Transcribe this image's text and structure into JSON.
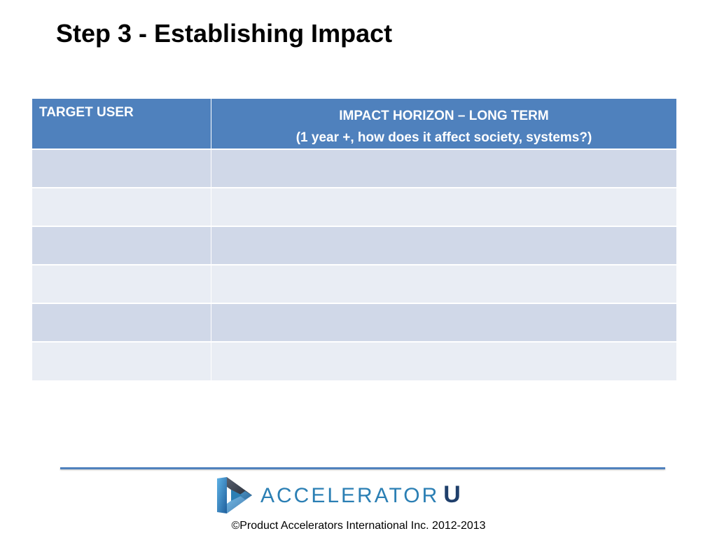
{
  "slide": {
    "title": "Step 3 - Establishing Impact"
  },
  "table": {
    "headers": {
      "target_user": "TARGET USER",
      "impact_line1": "IMPACT HORIZON – LONG TERM",
      "impact_line2": "(1 year +, how does it affect society, systems?)"
    },
    "rows": [
      {
        "target_user": "",
        "impact": ""
      },
      {
        "target_user": "",
        "impact": ""
      },
      {
        "target_user": "",
        "impact": ""
      },
      {
        "target_user": "",
        "impact": ""
      },
      {
        "target_user": "",
        "impact": ""
      },
      {
        "target_user": "",
        "impact": ""
      }
    ],
    "colors": {
      "header": "#4f81bd",
      "row_odd": "#d0d8e8",
      "row_even": "#e9edf4"
    }
  },
  "footer": {
    "logo_text": "ACCELERATOR",
    "logo_suffix": "U",
    "copyright": "©Product Accelerators International Inc. 2012-2013",
    "icon": "accelerator-u-logo-icon",
    "colors": {
      "rule": "#4f81bd",
      "logo_text": "#2b7fb4",
      "logo_suffix": "#1f3f6b"
    }
  }
}
